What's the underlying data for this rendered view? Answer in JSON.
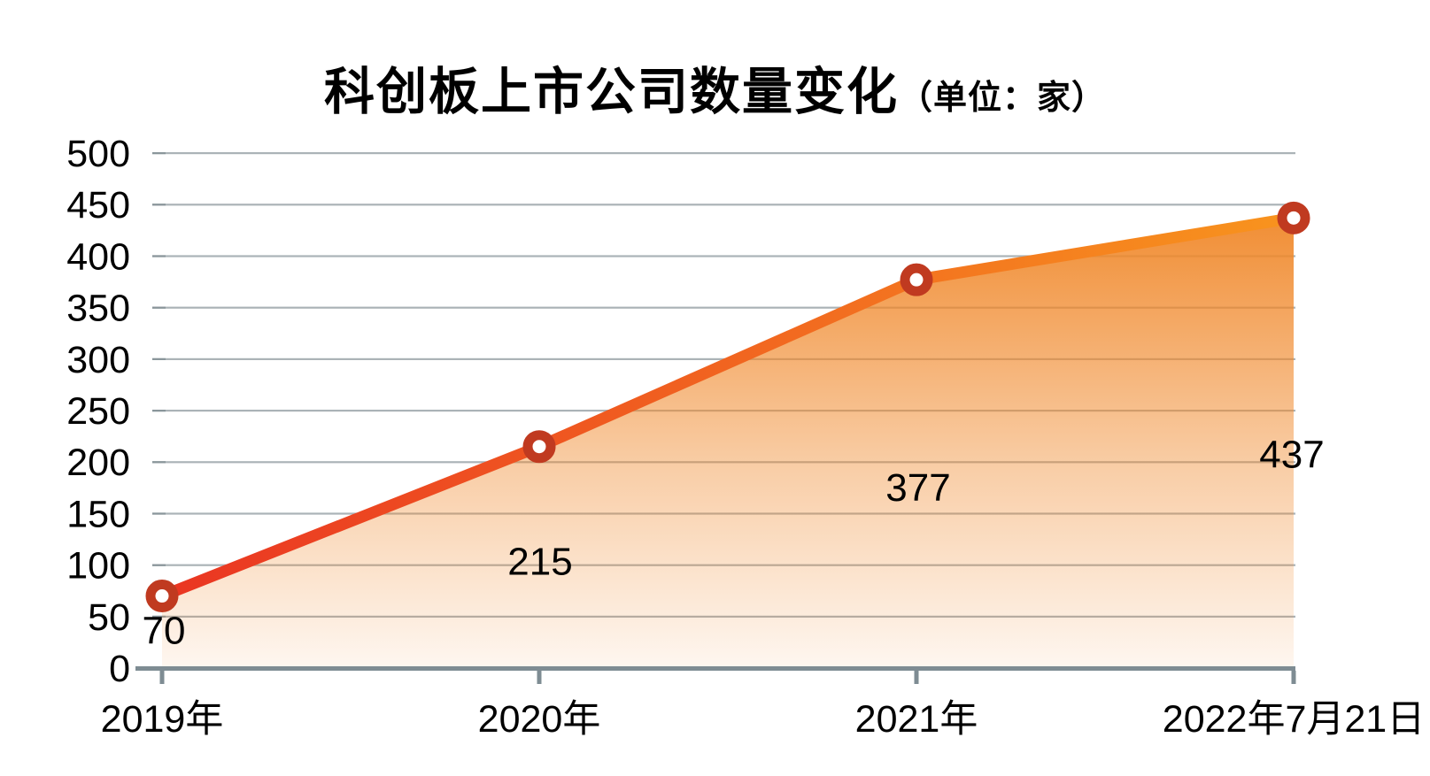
{
  "title": {
    "main": "科创板上市公司数量变化",
    "unit": "（单位：家）"
  },
  "chart_data": {
    "type": "area",
    "title": "科创板上市公司数量变化",
    "unit_label": "（单位：家）",
    "categories": [
      "2019年",
      "2020年",
      "2021年",
      "2022年7月21日"
    ],
    "values": [
      70,
      215,
      377,
      437
    ],
    "data_labels": [
      "70",
      "215",
      "377",
      "437"
    ],
    "xlabel": "",
    "ylabel": "",
    "ylim": [
      0,
      500
    ],
    "ytick_step": 50,
    "yticks": [
      500,
      450,
      400,
      350,
      300,
      250,
      200,
      150,
      100,
      50,
      0
    ],
    "grid": "horizontal",
    "legend": "none",
    "colors": {
      "line_gradient_start": "#ea3522",
      "line_gradient_end": "#f8941e",
      "marker_ring": "#c03a20",
      "marker_fill": "#ffffff",
      "area_base": "#f0882a",
      "gridline": "#abb3b7",
      "gridline_tick": "#8a969b",
      "axis": "#7e8c93",
      "text": "#000000"
    }
  }
}
